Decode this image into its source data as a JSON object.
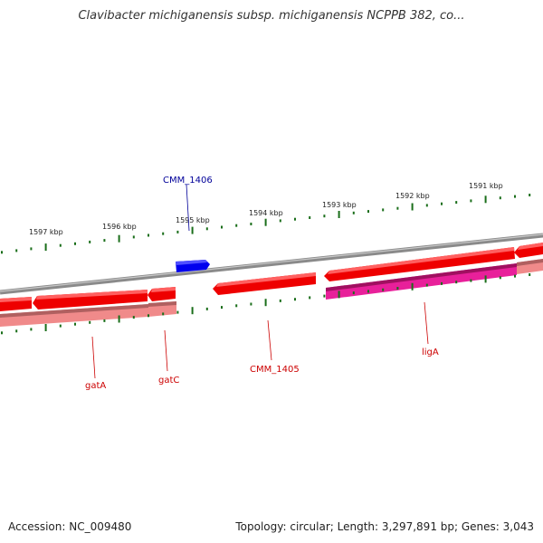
{
  "title": "Clavibacter michiganensis subsp. michiganensis NCPPB 382, co...",
  "footer": {
    "accession": "Accession: NC_009480",
    "summary": "Topology: circular; Length: 3,297,891 bp; Genes: 3,043"
  },
  "colors": {
    "forward_gene": "#0000ee",
    "reverse_gene": "#ee0000",
    "reverse_gene_light": "#f08080",
    "highlight_gene": "#e8209a",
    "backbone": "#888888",
    "ticks": "#1a6e1a",
    "forward_label": "#000099",
    "reverse_label": "#cc0000"
  },
  "ruler": {
    "unit": "kbp",
    "labels": [
      "1597 kbp",
      "1596 kbp",
      "1595 kbp",
      "1594 kbp",
      "1593 kbp",
      "1592 kbp",
      "1591 kbp"
    ]
  },
  "genes": [
    {
      "name": "CMM_1406",
      "strand": "forward"
    },
    {
      "name": "gatA",
      "strand": "reverse"
    },
    {
      "name": "gatC",
      "strand": "reverse"
    },
    {
      "name": "CMM_1405",
      "strand": "reverse"
    },
    {
      "name": "ligA",
      "strand": "reverse"
    }
  ]
}
